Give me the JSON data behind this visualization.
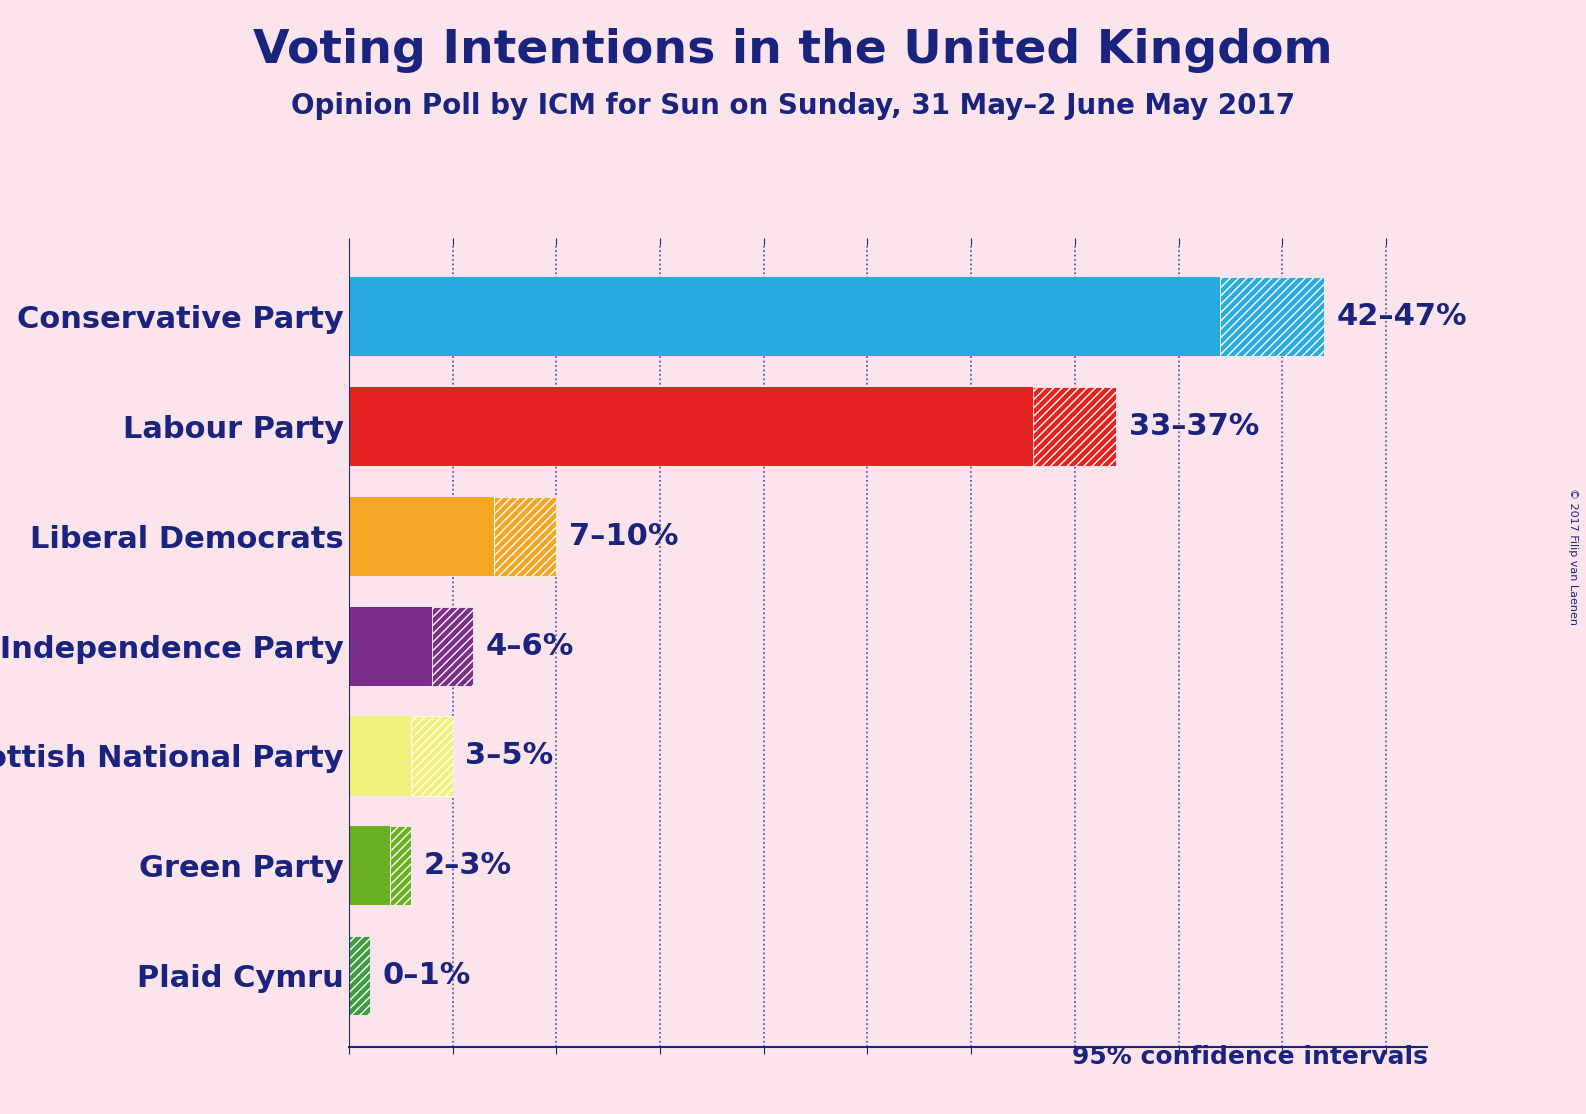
{
  "title": "Voting Intentions in the United Kingdom",
  "subtitle": "Opinion Poll by ICM for Sun on Sunday, 31 May–2 June May 2017",
  "copyright": "© 2017 Filip van Laenen",
  "background_color": "#fce4ec",
  "title_color": "#1a237e",
  "subtitle_color": "#1a237e",
  "parties": [
    "Conservative Party",
    "Labour Party",
    "Liberal Democrats",
    "UK Independence Party",
    "Scottish National Party",
    "Green Party",
    "Plaid Cymru"
  ],
  "low_values": [
    42,
    33,
    7,
    4,
    3,
    2,
    0
  ],
  "high_values": [
    47,
    37,
    10,
    6,
    5,
    3,
    1
  ],
  "bar_colors": [
    "#29ABE2",
    "#E52421",
    "#F5A623",
    "#7B2D8B",
    "#F0F07A",
    "#6AB023",
    "#3E9B3E"
  ],
  "labels": [
    "42–47%",
    "33–37%",
    "7–10%",
    "4–6%",
    "3–5%",
    "2–3%",
    "0–1%"
  ],
  "axis_color": "#1a237e",
  "grid_color": "#1a237e",
  "label_color": "#1a237e",
  "confidence_text": "95% confidence intervals",
  "xlim": [
    0,
    52
  ],
  "bar_height": 0.72,
  "label_fontsize": 22,
  "title_fontsize": 34,
  "subtitle_fontsize": 20,
  "value_fontsize": 22
}
